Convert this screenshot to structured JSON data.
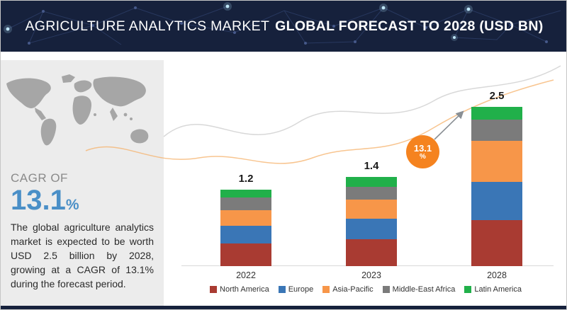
{
  "header": {
    "title_part1": "AGRICULTURE ANALYTICS MARKET",
    "title_part2": "GLOBAL FORECAST TO 2028 (USD BN)"
  },
  "sidebar": {
    "cagr_label": "CAGR OF",
    "cagr_value": "13.1",
    "cagr_unit": "%",
    "accent_color": "#4a8fc7",
    "description": "The global agriculture analytics market is expected to be worth USD 2.5 billion by 2028, growing at a CAGR of 13.1% during the forecast period."
  },
  "chart_data": {
    "type": "bar",
    "stacked": true,
    "title": "Agriculture Analytics Market Global Forecast to 2028 (USD BN)",
    "categories": [
      "2022",
      "2023",
      "2028"
    ],
    "totals": [
      1.2,
      1.4,
      2.5
    ],
    "series": [
      {
        "name": "North America",
        "color": "#a93b32",
        "values": [
          0.36,
          0.42,
          0.72
        ]
      },
      {
        "name": "Europe",
        "color": "#3a76b6",
        "values": [
          0.27,
          0.32,
          0.6
        ]
      },
      {
        "name": "Asia-Pacific",
        "color": "#f79649",
        "values": [
          0.25,
          0.3,
          0.65
        ]
      },
      {
        "name": "Middle-East Africa",
        "color": "#7b7b7b",
        "values": [
          0.2,
          0.21,
          0.33
        ]
      },
      {
        "name": "Latin America",
        "color": "#21b04a",
        "values": [
          0.12,
          0.15,
          0.2
        ]
      }
    ],
    "badge": {
      "value": "13.1",
      "unit": "%",
      "color": "#f5831f"
    },
    "legend_position": "bottom",
    "grid": false,
    "ylim": [
      0,
      2.5
    ]
  }
}
